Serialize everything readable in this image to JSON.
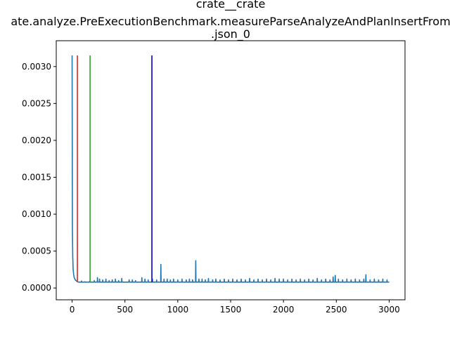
{
  "chart_data": {
    "type": "line",
    "title_lines": [
      "crate__crate",
      "ate.analyze.PreExecutionBenchmark.measureParseAnalyzeAndPlanInsertFrom",
      ".json_0"
    ],
    "xlabel": "",
    "ylabel": "",
    "xlim": [
      -150,
      3150
    ],
    "ylim": [
      -0.00016,
      0.00335
    ],
    "x_ticks": [
      0,
      500,
      1000,
      1500,
      2000,
      2500,
      3000
    ],
    "x_tick_labels": [
      "0",
      "500",
      "1000",
      "1500",
      "2000",
      "2500",
      "3000"
    ],
    "y_ticks": [
      0.0,
      0.0005,
      0.001,
      0.0015,
      0.002,
      0.0025,
      0.003
    ],
    "y_tick_labels": [
      "0.0000",
      "0.0005",
      "0.0010",
      "0.0015",
      "0.0020",
      "0.0025",
      "0.0030"
    ],
    "grid": false,
    "series": [
      {
        "color": "#1f77b4",
        "x_start": 0,
        "x_end": 3000,
        "baseline": 8e-05,
        "initial_decay": [
          [
            0,
            0.00315
          ],
          [
            3,
            0.0008
          ],
          [
            6,
            0.00042
          ],
          [
            10,
            0.00025
          ],
          [
            15,
            0.00018
          ],
          [
            20,
            0.00014
          ],
          [
            30,
            0.00011
          ],
          [
            45,
            9e-05
          ],
          [
            60,
            8e-05
          ]
        ],
        "spikes": [
          [
            90,
            9.5e-05
          ],
          [
            120,
            8.5e-05
          ],
          [
            165,
            9e-05
          ],
          [
            210,
            0.0001
          ],
          [
            240,
            0.00014
          ],
          [
            260,
            0.00012
          ],
          [
            290,
            0.00011
          ],
          [
            320,
            0.00012
          ],
          [
            350,
            0.0001
          ],
          [
            380,
            0.00011
          ],
          [
            410,
            0.00012
          ],
          [
            440,
            0.0001
          ],
          [
            470,
            0.00013
          ],
          [
            540,
            0.00011
          ],
          [
            570,
            0.00011
          ],
          [
            600,
            0.0001
          ],
          [
            660,
            0.00014
          ],
          [
            690,
            0.00012
          ],
          [
            720,
            0.00011
          ],
          [
            760,
            0.00012
          ],
          [
            800,
            0.00011
          ],
          [
            840,
            0.00032
          ],
          [
            870,
            0.00012
          ],
          [
            900,
            0.00012
          ],
          [
            930,
            0.00011
          ],
          [
            960,
            0.00012
          ],
          [
            1000,
            0.00011
          ],
          [
            1040,
            0.00012
          ],
          [
            1080,
            0.00011
          ],
          [
            1110,
            0.00012
          ],
          [
            1140,
            0.00011
          ],
          [
            1170,
            0.00037
          ],
          [
            1200,
            0.00012
          ],
          [
            1230,
            0.00012
          ],
          [
            1260,
            0.00011
          ],
          [
            1290,
            0.00013
          ],
          [
            1330,
            0.00011
          ],
          [
            1360,
            0.00012
          ],
          [
            1400,
            0.00011
          ],
          [
            1440,
            0.00012
          ],
          [
            1480,
            0.00011
          ],
          [
            1520,
            0.00012
          ],
          [
            1560,
            0.00011
          ],
          [
            1600,
            0.00012
          ],
          [
            1640,
            0.00011
          ],
          [
            1680,
            0.00013
          ],
          [
            1720,
            0.00011
          ],
          [
            1760,
            0.00012
          ],
          [
            1800,
            0.00011
          ],
          [
            1840,
            0.00012
          ],
          [
            1880,
            0.00011
          ],
          [
            1920,
            0.00013
          ],
          [
            1960,
            0.00012
          ],
          [
            2000,
            0.00012
          ],
          [
            2040,
            0.00011
          ],
          [
            2080,
            0.00012
          ],
          [
            2120,
            0.00011
          ],
          [
            2160,
            0.00012
          ],
          [
            2200,
            0.00011
          ],
          [
            2240,
            0.00012
          ],
          [
            2280,
            0.00011
          ],
          [
            2320,
            0.00013
          ],
          [
            2360,
            0.00011
          ],
          [
            2400,
            0.00012
          ],
          [
            2440,
            0.00011
          ],
          [
            2470,
            0.00015
          ],
          [
            2490,
            0.00017
          ],
          [
            2520,
            0.00012
          ],
          [
            2560,
            0.00011
          ],
          [
            2600,
            0.00012
          ],
          [
            2640,
            0.00011
          ],
          [
            2680,
            0.00012
          ],
          [
            2720,
            0.00011
          ],
          [
            2760,
            0.00012
          ],
          [
            2780,
            0.00018
          ],
          [
            2820,
            0.00011
          ],
          [
            2860,
            0.00012
          ],
          [
            2900,
            0.00011
          ],
          [
            2940,
            0.00012
          ],
          [
            2980,
            0.00011
          ]
        ]
      }
    ],
    "vertical_lines": [
      {
        "x": 50,
        "y_min": 8e-05,
        "y_max": 0.00315,
        "color": "#d62728"
      },
      {
        "x": 170,
        "y_min": 8e-05,
        "y_max": 0.00315,
        "color": "#2ca02c"
      },
      {
        "x": 755,
        "y_min": 8e-05,
        "y_max": 0.00315,
        "color": "#0000cc"
      }
    ]
  }
}
